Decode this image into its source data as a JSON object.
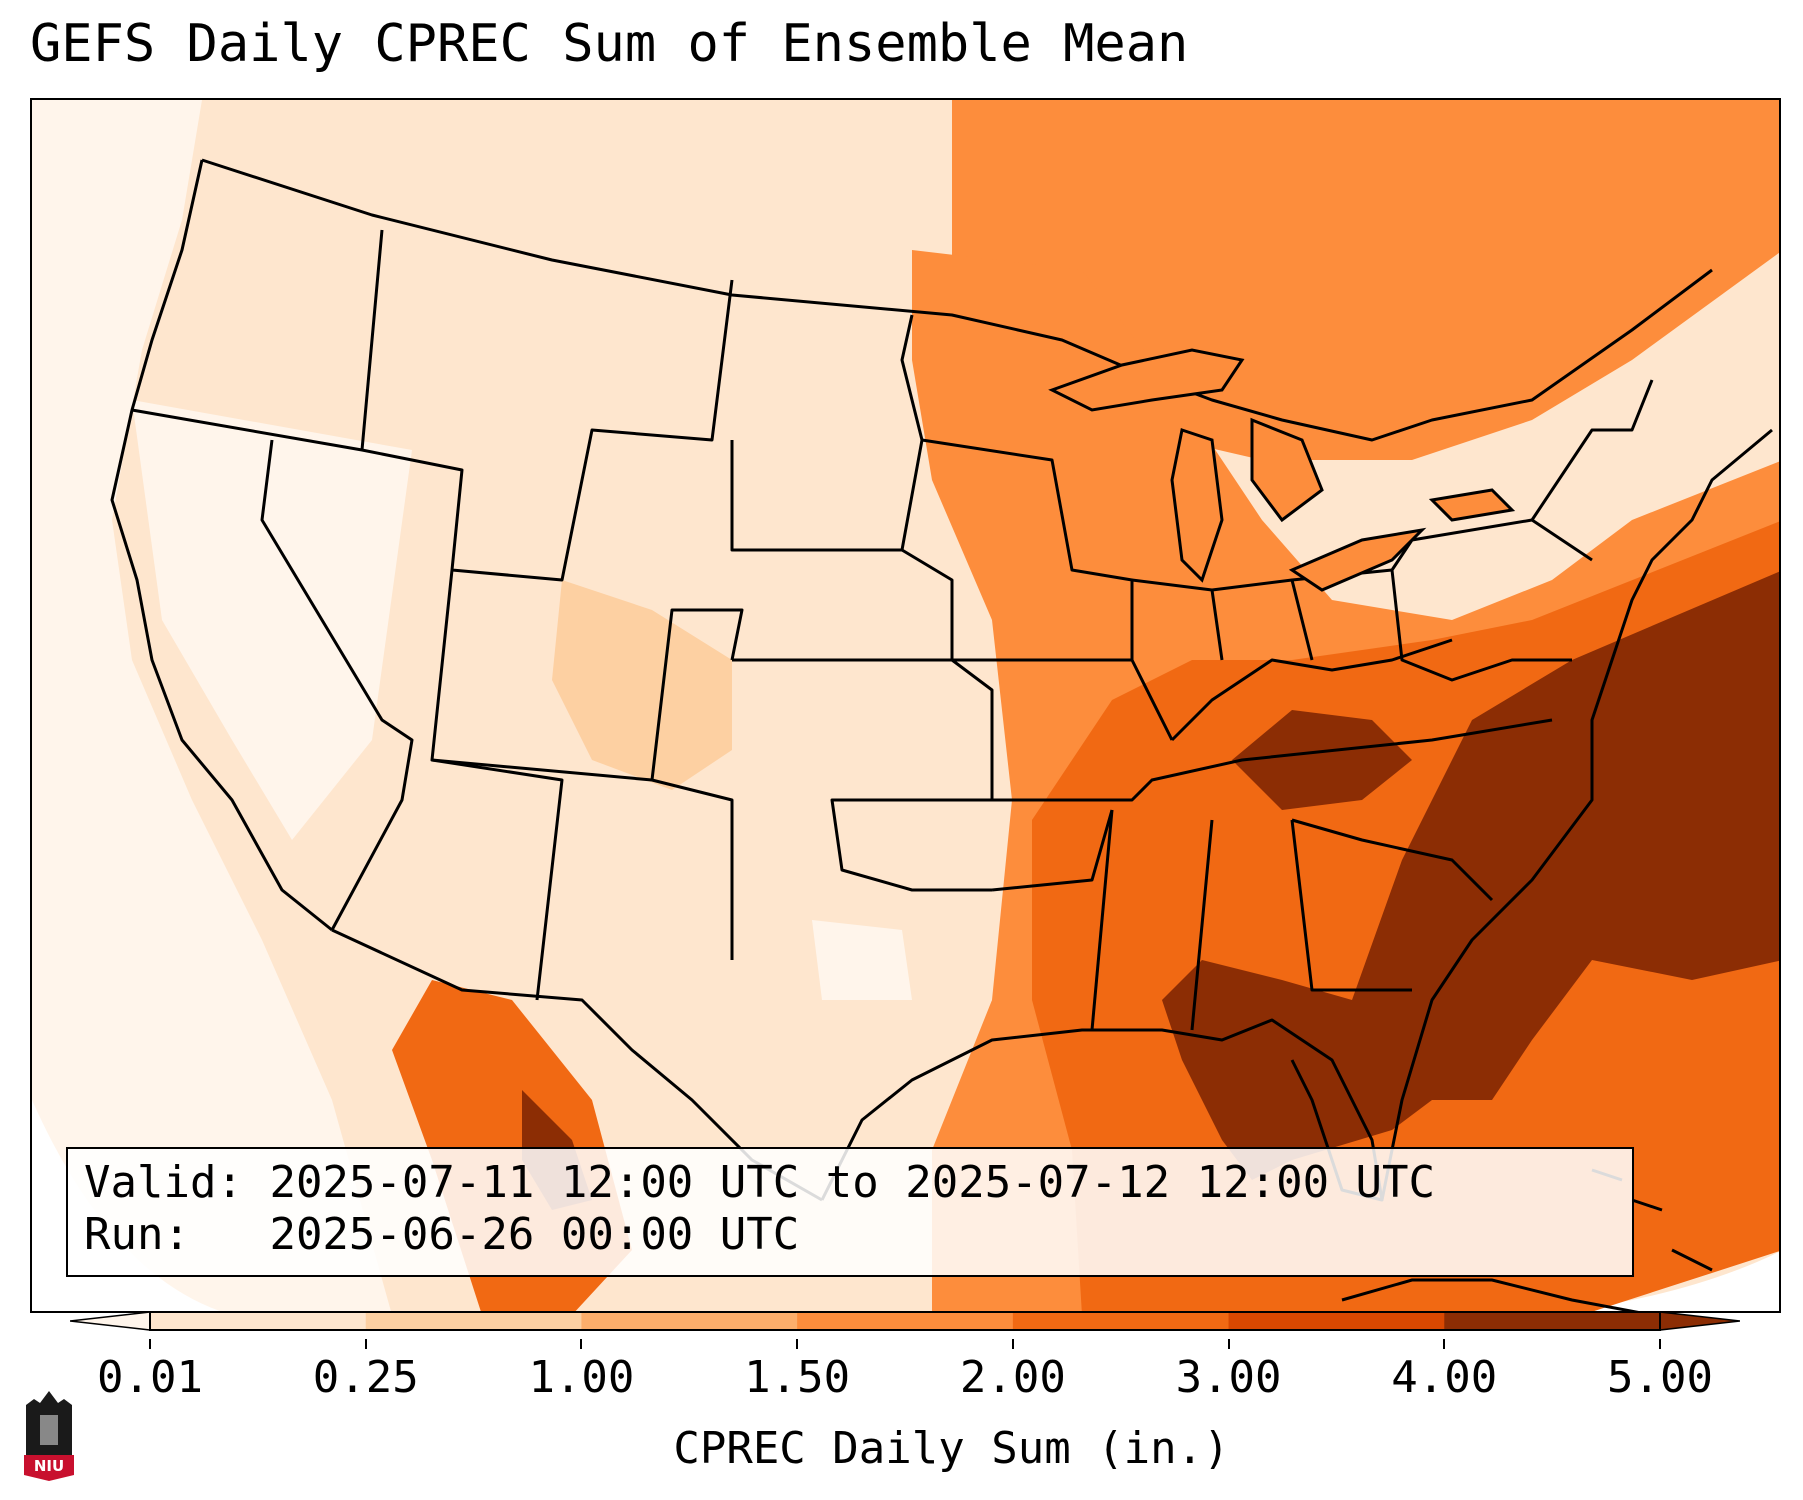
{
  "title": "GEFS Daily CPREC Sum of Ensemble Mean",
  "info": {
    "valid_label": "Valid:",
    "valid_value": "2025-07-11 12:00 UTC to 2025-07-12 12:00 UTC",
    "run_label": "Run:",
    "run_value": "2025-06-26 00:00 UTC"
  },
  "colorbar": {
    "label": "CPREC Daily Sum (in.)",
    "ticks": [
      "0.01",
      "0.25",
      "1.00",
      "1.50",
      "2.00",
      "3.00",
      "4.00",
      "5.00"
    ],
    "colors": [
      "#fff5eb",
      "#fee6ce",
      "#fdd0a2",
      "#fdae6b",
      "#fd8d3c",
      "#f16913",
      "#d94801",
      "#8c2d04"
    ],
    "extend": "both"
  },
  "logo": {
    "text": "NIU",
    "color": "#c8102e"
  },
  "map": {
    "region": "Continental United States",
    "precip_units": "in."
  }
}
